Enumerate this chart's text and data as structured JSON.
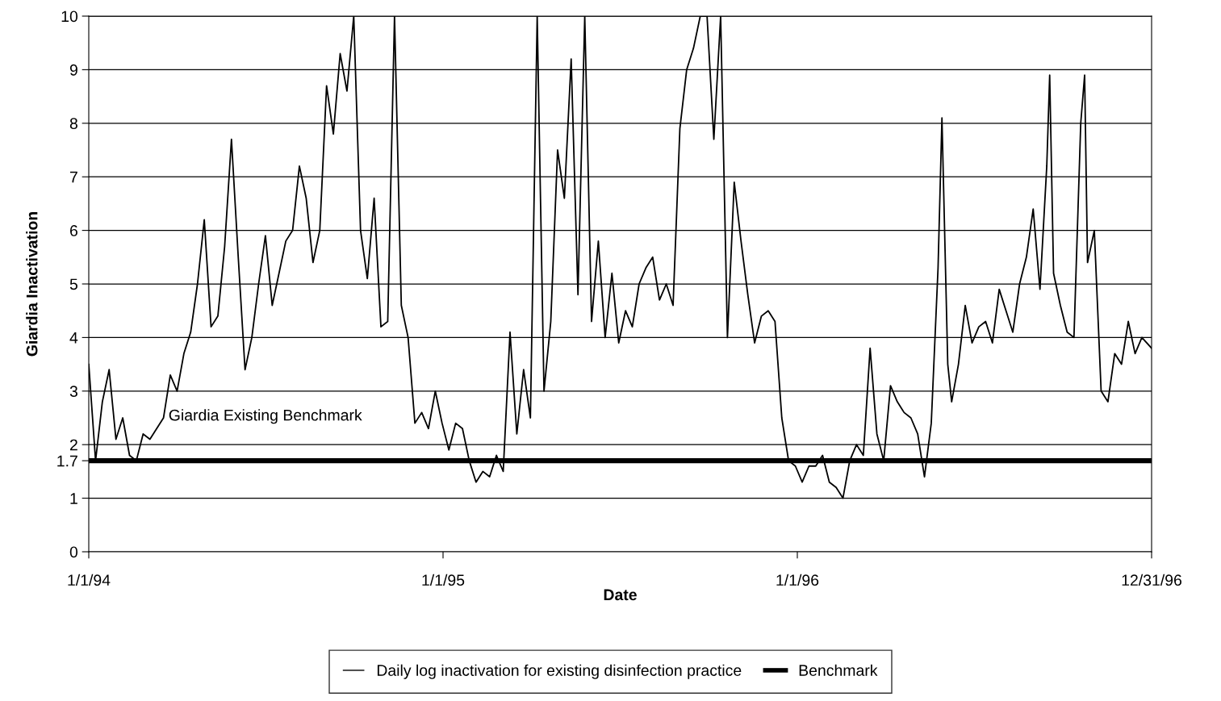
{
  "chart_data": {
    "type": "line",
    "xlabel": "Date",
    "ylabel": "Giardia Inactivation",
    "xlim": [
      "1994-01-01",
      "1996-12-31"
    ],
    "xticks": [
      {
        "value": "1994-01-01",
        "label": "1/1/94"
      },
      {
        "value": "1995-01-01",
        "label": "1/1/95"
      },
      {
        "value": "1996-01-01",
        "label": "1/1/96"
      },
      {
        "value": "1996-12-31",
        "label": "12/31/96"
      }
    ],
    "ylim": [
      0,
      10
    ],
    "yticks": [
      0,
      1,
      1.7,
      2,
      3,
      4,
      5,
      6,
      7,
      8,
      9,
      10
    ],
    "grid": "y",
    "legend": "bottom",
    "marker": "none",
    "line_style": "solid",
    "annotations": [
      "Giardia Existing Benchmark"
    ],
    "ref_lines": [
      {
        "axis": "y",
        "value": 1.7,
        "label": "Benchmark",
        "color": "#000000"
      }
    ],
    "series": [
      {
        "name": "Daily log inactivation for existing disinfection practice",
        "color": "#000000",
        "x": [
          "1994-01-01",
          "1994-01-08",
          "1994-01-15",
          "1994-01-22",
          "1994-01-29",
          "1994-02-05",
          "1994-02-12",
          "1994-02-19",
          "1994-02-26",
          "1994-03-05",
          "1994-03-12",
          "1994-03-19",
          "1994-03-26",
          "1994-04-02",
          "1994-04-09",
          "1994-04-16",
          "1994-04-23",
          "1994-04-30",
          "1994-05-07",
          "1994-05-14",
          "1994-05-21",
          "1994-05-28",
          "1994-06-04",
          "1994-06-11",
          "1994-06-18",
          "1994-06-25",
          "1994-07-02",
          "1994-07-09",
          "1994-07-16",
          "1994-07-23",
          "1994-07-30",
          "1994-08-06",
          "1994-08-13",
          "1994-08-20",
          "1994-08-27",
          "1994-09-03",
          "1994-09-10",
          "1994-09-17",
          "1994-09-24",
          "1994-10-01",
          "1994-10-08",
          "1994-10-15",
          "1994-10-22",
          "1994-10-29",
          "1994-11-05",
          "1994-11-12",
          "1994-11-19",
          "1994-11-26",
          "1994-12-03",
          "1994-12-10",
          "1994-12-17",
          "1994-12-24",
          "1994-12-31",
          "1995-01-07",
          "1995-01-14",
          "1995-01-21",
          "1995-01-28",
          "1995-02-04",
          "1995-02-11",
          "1995-02-18",
          "1995-02-25",
          "1995-03-04",
          "1995-03-11",
          "1995-03-18",
          "1995-03-25",
          "1995-04-01",
          "1995-04-08",
          "1995-04-15",
          "1995-04-22",
          "1995-04-29",
          "1995-05-06",
          "1995-05-13",
          "1995-05-20",
          "1995-05-27",
          "1995-06-03",
          "1995-06-10",
          "1995-06-17",
          "1995-06-24",
          "1995-07-01",
          "1995-07-08",
          "1995-07-15",
          "1995-07-22",
          "1995-07-29",
          "1995-08-05",
          "1995-08-12",
          "1995-08-19",
          "1995-08-26",
          "1995-09-02",
          "1995-09-09",
          "1995-09-16",
          "1995-09-23",
          "1995-09-30",
          "1995-10-07",
          "1995-10-14",
          "1995-10-21",
          "1995-10-28",
          "1995-11-04",
          "1995-11-11",
          "1995-11-18",
          "1995-11-25",
          "1995-12-02",
          "1995-12-09",
          "1995-12-16",
          "1995-12-23",
          "1995-12-30",
          "1996-01-06",
          "1996-01-13",
          "1996-01-20",
          "1996-01-27",
          "1996-02-03",
          "1996-02-10",
          "1996-02-17",
          "1996-02-24",
          "1996-03-02",
          "1996-03-09",
          "1996-03-16",
          "1996-03-23",
          "1996-03-30",
          "1996-04-06",
          "1996-04-13",
          "1996-04-20",
          "1996-04-27",
          "1996-05-04",
          "1996-05-11",
          "1996-05-18",
          "1996-05-25",
          "1996-05-29",
          "1996-06-04",
          "1996-06-08",
          "1996-06-15",
          "1996-06-22",
          "1996-06-29",
          "1996-07-06",
          "1996-07-13",
          "1996-07-20",
          "1996-07-27",
          "1996-08-03",
          "1996-08-10",
          "1996-08-17",
          "1996-08-24",
          "1996-08-31",
          "1996-09-07",
          "1996-09-14",
          "1996-09-17",
          "1996-09-21",
          "1996-09-28",
          "1996-10-05",
          "1996-10-12",
          "1996-10-19",
          "1996-10-23",
          "1996-10-26",
          "1996-11-02",
          "1996-11-09",
          "1996-11-16",
          "1996-11-23",
          "1996-11-30",
          "1996-12-07",
          "1996-12-14",
          "1996-12-21",
          "1996-12-31"
        ],
        "values": [
          3.5,
          1.7,
          2.8,
          3.4,
          2.1,
          2.5,
          1.8,
          1.7,
          2.2,
          2.1,
          2.3,
          2.5,
          3.3,
          3.0,
          3.7,
          4.1,
          5.0,
          6.2,
          4.2,
          4.4,
          5.7,
          7.7,
          5.5,
          3.4,
          4.0,
          5.0,
          5.9,
          4.6,
          5.2,
          5.8,
          6.0,
          7.2,
          6.6,
          5.4,
          6.0,
          8.7,
          7.8,
          9.3,
          8.6,
          10,
          6.0,
          5.1,
          6.6,
          4.2,
          4.3,
          10,
          4.6,
          4.0,
          2.4,
          2.6,
          2.3,
          3.0,
          2.4,
          1.9,
          2.4,
          2.3,
          1.7,
          1.3,
          1.5,
          1.4,
          1.8,
          1.5,
          4.1,
          2.2,
          3.4,
          2.5,
          10,
          3.0,
          4.3,
          7.5,
          6.6,
          9.2,
          4.8,
          10,
          4.3,
          5.8,
          4.0,
          5.2,
          3.9,
          4.5,
          4.2,
          5.0,
          5.3,
          5.5,
          4.7,
          5.0,
          4.6,
          7.9,
          9.0,
          9.4,
          10,
          10,
          7.7,
          10,
          4.0,
          6.9,
          5.8,
          4.8,
          3.9,
          4.4,
          4.5,
          4.3,
          2.5,
          1.7,
          1.6,
          1.3,
          1.6,
          1.6,
          1.8,
          1.3,
          1.2,
          1.0,
          1.7,
          2.0,
          1.8,
          3.8,
          2.2,
          1.7,
          3.1,
          2.8,
          2.6,
          2.5,
          2.2,
          1.4,
          2.4,
          5.3,
          8.1,
          3.5,
          2.8,
          3.5,
          4.6,
          3.9,
          4.2,
          4.3,
          3.9,
          4.9,
          4.5,
          4.1,
          5.0,
          5.5,
          6.4,
          4.9,
          7.2,
          8.9,
          5.2,
          4.6,
          4.1,
          4.0,
          8.0,
          8.9,
          5.4,
          6.0,
          3.0,
          2.8,
          3.7,
          3.5,
          4.3,
          3.7,
          4.0,
          3.8
        ]
      }
    ]
  }
}
